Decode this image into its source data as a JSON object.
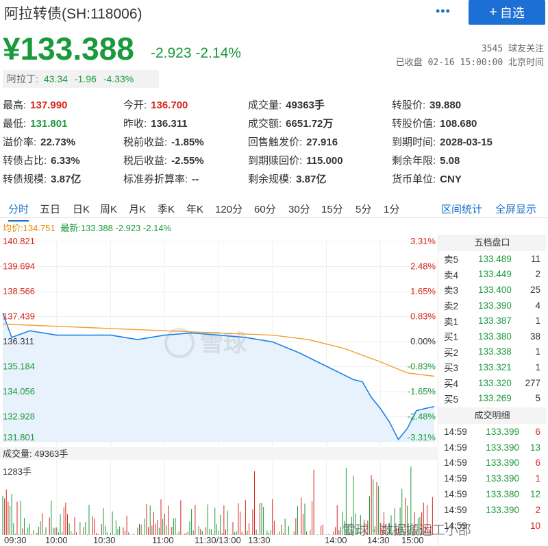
{
  "header": {
    "title": "阿拉转债(SH:118006)",
    "more_icon": "more-dots-icon",
    "add_button": "自选",
    "price": "¥133.388",
    "change": "-2.923 -2.14%",
    "followers": "3545 球友关注",
    "status": "已收盘 02-16 15:00:00 北京时间"
  },
  "underlying": {
    "name": "阿拉丁:",
    "price": "43.34",
    "change": "-1.96",
    "pct": "-4.33%"
  },
  "stats": [
    {
      "label": "最高:",
      "value": "137.990",
      "color": "#d7261e"
    },
    {
      "label": "今开:",
      "value": "136.700",
      "color": "#d7261e"
    },
    {
      "label": "成交量:",
      "value": "49363手",
      "color": "#333333"
    },
    {
      "label": "转股价:",
      "value": "39.880",
      "color": "#333333"
    },
    {
      "label": "最低:",
      "value": "131.801",
      "color": "#1a9a3a"
    },
    {
      "label": "昨收:",
      "value": "136.311",
      "color": "#333333"
    },
    {
      "label": "成交额:",
      "value": "6651.72万",
      "color": "#333333"
    },
    {
      "label": "转股价值:",
      "value": "108.680",
      "color": "#333333"
    },
    {
      "label": "溢价率:",
      "value": "22.73%",
      "color": "#333333"
    },
    {
      "label": "税前收益:",
      "value": "-1.85%",
      "color": "#333333"
    },
    {
      "label": "回售触发价:",
      "value": "27.916",
      "color": "#333333"
    },
    {
      "label": "到期时间:",
      "value": "2028-03-15",
      "color": "#333333"
    },
    {
      "label": "转债占比:",
      "value": "6.33%",
      "color": "#333333"
    },
    {
      "label": "税后收益:",
      "value": "-2.55%",
      "color": "#333333"
    },
    {
      "label": "到期赎回价:",
      "value": "115.000",
      "color": "#333333"
    },
    {
      "label": "剩余年限:",
      "value": "5.08",
      "color": "#333333"
    },
    {
      "label": "转债规模:",
      "value": "3.87亿",
      "color": "#333333"
    },
    {
      "label": "标准券折算率:",
      "value": "--",
      "color": "#333333"
    },
    {
      "label": "剩余规模:",
      "value": "3.87亿",
      "color": "#333333"
    },
    {
      "label": "货币单位:",
      "value": "CNY",
      "color": "#333333"
    }
  ],
  "tabs": [
    "分时",
    "五日",
    "日K",
    "周K",
    "月K",
    "季K",
    "年K",
    "120分",
    "60分",
    "30分",
    "15分",
    "5分",
    "1分"
  ],
  "tab_right": [
    "区间统计",
    "全屏显示"
  ],
  "legend": {
    "avg": "均价:134.751",
    "latest": "最新:133.388 -2.923 -2.14%"
  },
  "chart": {
    "y_left": [
      "140.821",
      "139.694",
      "138.566",
      "137.439",
      "136.311",
      "135.184",
      "134.056",
      "132.928",
      "131.801"
    ],
    "y_right": [
      "3.31%",
      "2.48%",
      "1.65%",
      "0.83%",
      "0.00%",
      "-0.83%",
      "-1.65%",
      "-2.48%",
      "-3.31%"
    ],
    "volume_label": "成交量: 49363手",
    "volume_max": "1283手",
    "x_labels": [
      "09:30",
      "10:00",
      "10:30",
      "11:00",
      "11:30/13:00",
      "13:30",
      "14:00",
      "14:30",
      "15:00"
    ],
    "watermark": "雪球"
  },
  "order_book": {
    "title": "五档盘口",
    "rows": [
      {
        "label": "卖5",
        "price": "133.489",
        "qty": "11"
      },
      {
        "label": "卖4",
        "price": "133.449",
        "qty": "2"
      },
      {
        "label": "卖3",
        "price": "133.400",
        "qty": "25"
      },
      {
        "label": "卖2",
        "price": "133.390",
        "qty": "4"
      },
      {
        "label": "卖1",
        "price": "133.387",
        "qty": "1"
      },
      {
        "label": "买1",
        "price": "133.380",
        "qty": "38"
      },
      {
        "label": "买2",
        "price": "133.338",
        "qty": "1"
      },
      {
        "label": "买3",
        "price": "133.321",
        "qty": "1"
      },
      {
        "label": "买4",
        "price": "133.320",
        "qty": "277"
      },
      {
        "label": "买5",
        "price": "133.269",
        "qty": "5"
      }
    ]
  },
  "trades": {
    "title": "成交明细",
    "rows": [
      {
        "time": "14:59",
        "price": "133.399",
        "qty": "6",
        "color": "#d7261e"
      },
      {
        "time": "14:59",
        "price": "133.390",
        "qty": "13",
        "color": "#1a9a3a"
      },
      {
        "time": "14:59",
        "price": "133.390",
        "qty": "6",
        "color": "#d7261e"
      },
      {
        "time": "14:59",
        "price": "133.390",
        "qty": "1",
        "color": "#d7261e"
      },
      {
        "time": "14:59",
        "price": "133.380",
        "qty": "12",
        "color": "#1a9a3a"
      },
      {
        "time": "14:59",
        "price": "133.390",
        "qty": "2",
        "color": "#d7261e"
      },
      {
        "time": "14:59",
        "price": "",
        "qty": "10",
        "color": "#d7261e"
      }
    ]
  },
  "footer_watermark": "雪球 · 数据搬运工小邵",
  "chart_data": {
    "type": "line",
    "title": "",
    "ylim": [
      131.801,
      140.821
    ],
    "x_range": [
      "09:30",
      "15:00"
    ],
    "series": [
      {
        "name": "最新",
        "color": "#1a82e8",
        "x_min": [
          0,
          5,
          15,
          30,
          45,
          60,
          75,
          90,
          105,
          120,
          135,
          150,
          165,
          175,
          185,
          195,
          200,
          205,
          210,
          215,
          220,
          225,
          230,
          235,
          240
        ],
        "values": [
          137.6,
          136.5,
          136.8,
          136.6,
          136.6,
          136.6,
          136.4,
          136.6,
          136.7,
          136.6,
          136.5,
          136.3,
          135.8,
          135.4,
          135.0,
          134.6,
          134.5,
          133.8,
          133.3,
          132.7,
          131.9,
          132.4,
          133.2,
          133.3,
          133.388
        ]
      },
      {
        "name": "均价",
        "color": "#f0a030",
        "x_min": [
          0,
          30,
          60,
          90,
          120,
          150,
          170,
          190,
          210,
          225,
          240
        ],
        "values": [
          137.1,
          137.0,
          136.9,
          136.8,
          136.7,
          136.6,
          136.4,
          136.0,
          135.4,
          134.9,
          134.751
        ]
      }
    ],
    "volume_ylim": [
      0,
      1283
    ]
  }
}
